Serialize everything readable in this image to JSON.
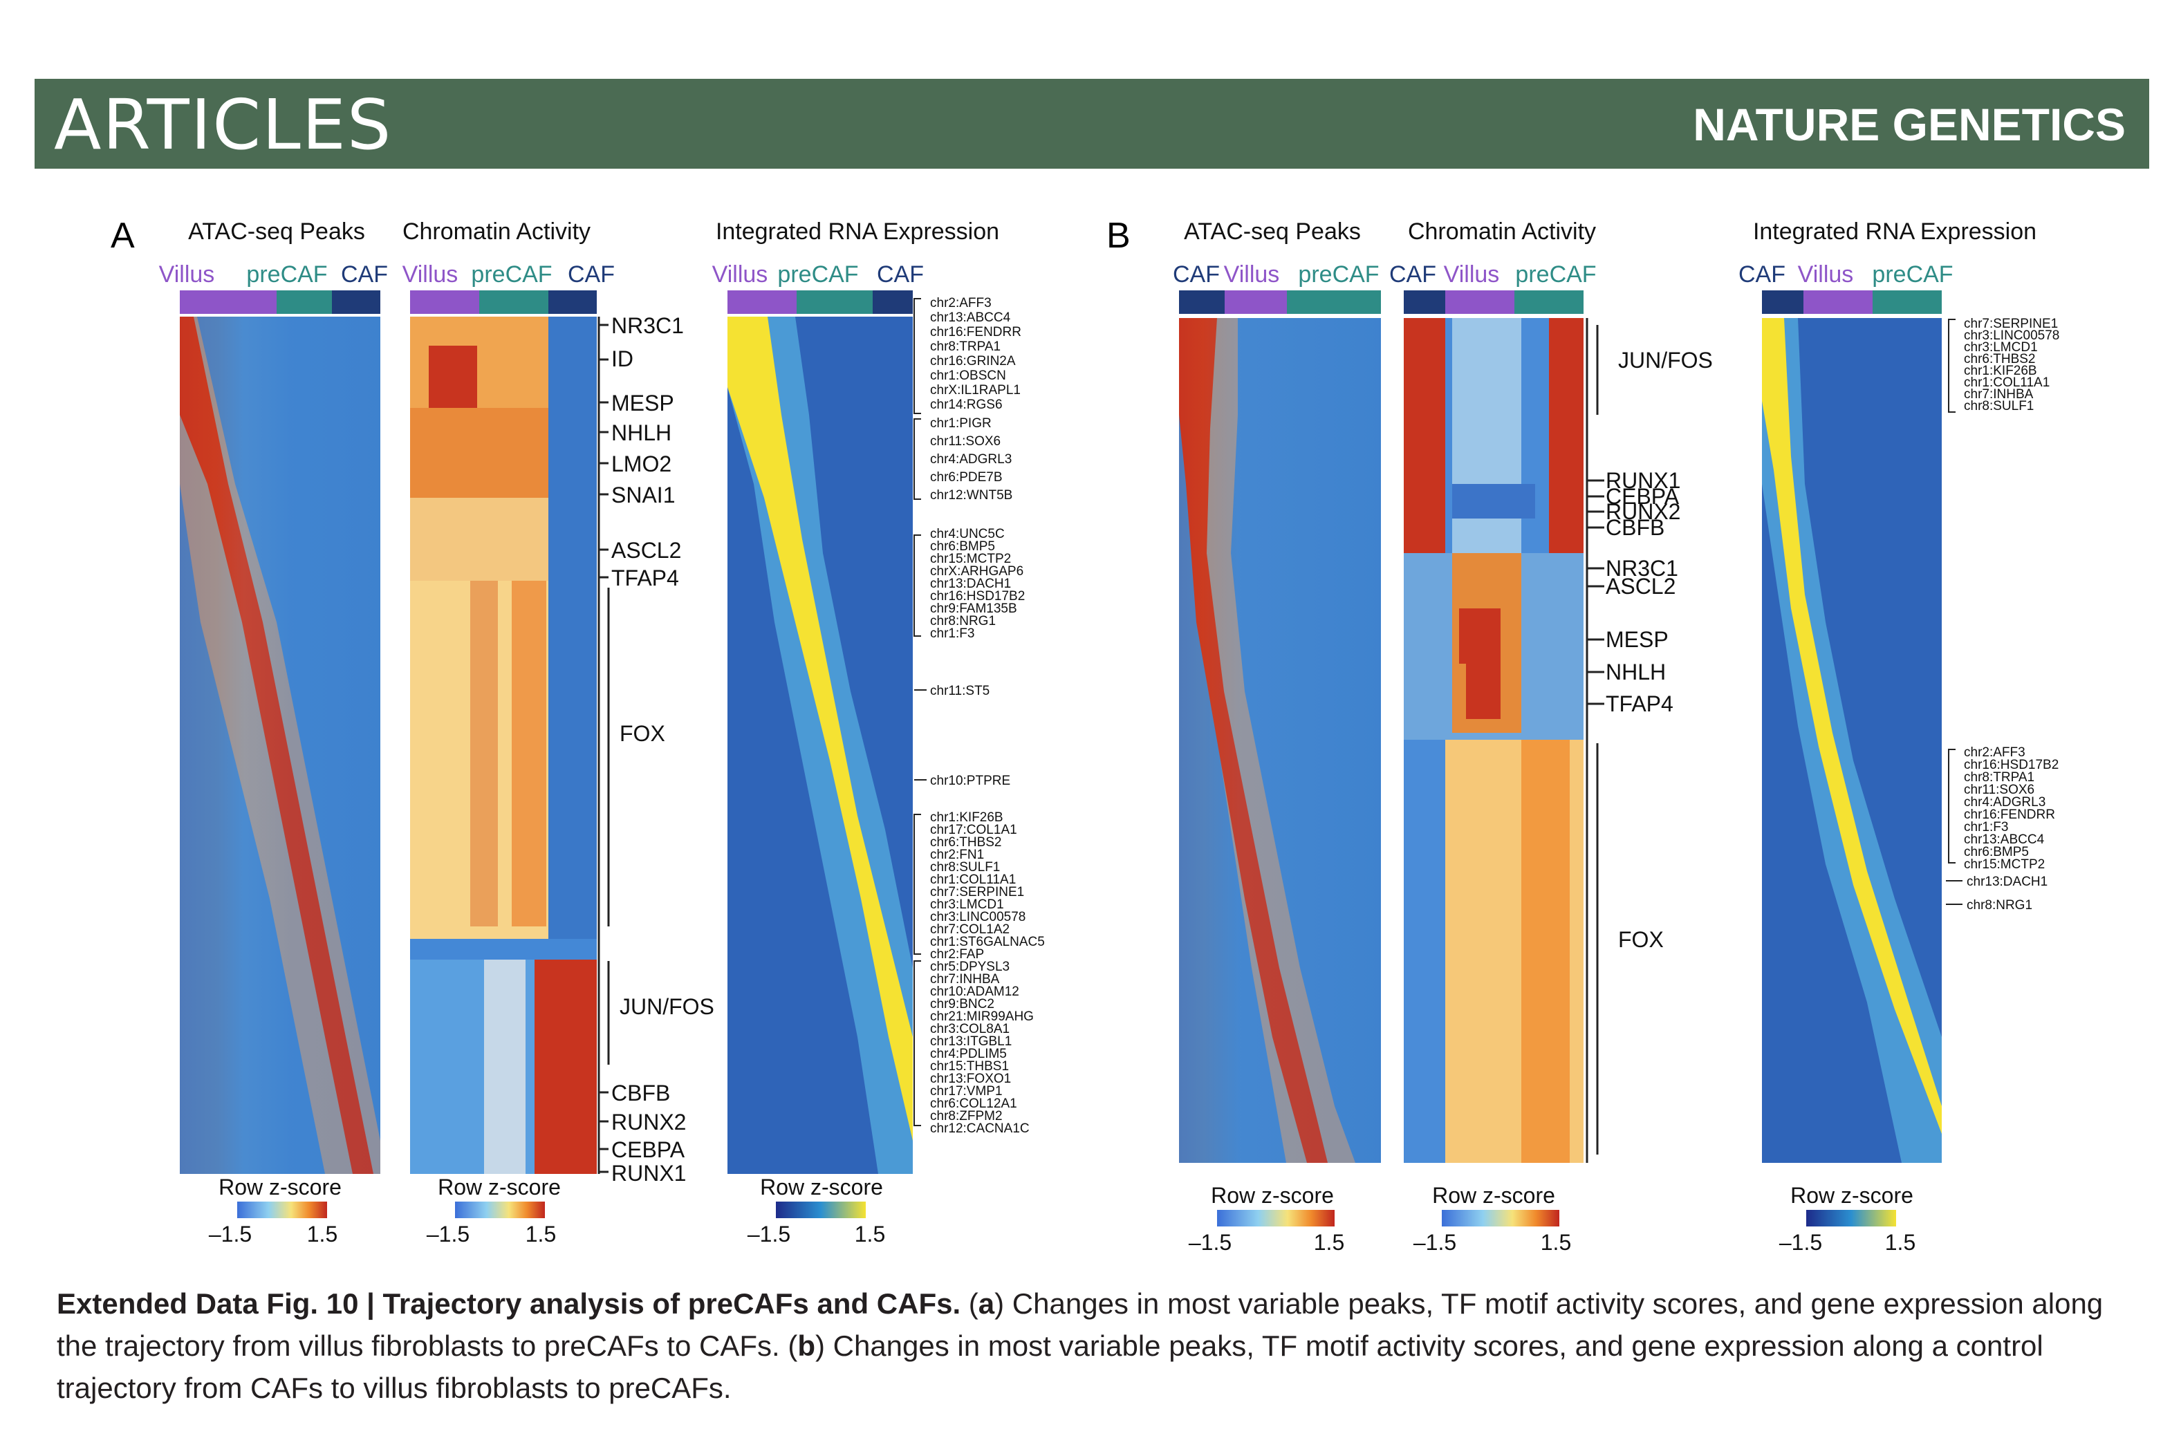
{
  "header": {
    "section": "ARTICLES",
    "journal": "NATURE GENETICS"
  },
  "panels": {
    "a": {
      "letter": "A",
      "titles": [
        "ATAC-seq Peaks",
        "Chromatin Activity",
        "Integrated RNA Expression"
      ],
      "group_labels": {
        "atac": [
          "Villus",
          "preCAF",
          "CAF"
        ],
        "chrom": [
          "Villus",
          "preCAF",
          "CAF"
        ],
        "rna": [
          "Villus",
          "preCAF",
          "CAF"
        ]
      },
      "tf_labels": [
        "NR3C1",
        "ID",
        "MESP",
        "NHLH",
        "LMO2",
        "SNAI1",
        "ASCL2",
        "TFAP4",
        "FOX",
        "JUN/FOS",
        "CBFB",
        "RUNX2",
        "CEBPA",
        "RUNX1"
      ],
      "gene_group1": [
        "chr2:AFF3",
        "chr13:ABCC4",
        "chr16:FENDRR",
        "chr8:TRPA1",
        "chr16:GRIN2A",
        "chr1:OBSCN",
        "chrX:IL1RAPL1",
        "chr14:RGS6"
      ],
      "gene_group2": [
        "chr1:PIGR",
        "chr11:SOX6",
        "chr4:ADGRL3",
        "chr6:PDE7B",
        "chr12:WNT5B"
      ],
      "gene_group3": [
        "chr4:UNC5C",
        "chr6:BMP5",
        "chr15:MCTP2",
        "chrX:ARHGAP6",
        "chr13:DACH1",
        "chr16:HSD17B2",
        "chr9:FAM135B",
        "chr8:NRG1",
        "chr1:F3"
      ],
      "gene_single1": "chr11:ST5",
      "gene_single2": "chr10:PTPRE",
      "gene_group4": [
        "chr1:KIF26B",
        "chr17:COL1A1",
        "chr6:THBS2",
        "chr2:FN1",
        "chr8:SULF1",
        "chr1:COL11A1",
        "chr7:SERPINE1",
        "chr3:LMCD1",
        "chr3:LINC00578",
        "chr7:COL1A2",
        "chr1:ST6GALNAC5",
        "chr2:FAP"
      ],
      "gene_group5": [
        "chr5:DPYSL3",
        "chr7:INHBA",
        "chr10:ADAM12",
        "chr9:BNC2",
        "chr21:MIR99AHG",
        "chr3:COL8A1",
        "chr13:ITGBL1",
        "chr4:PDLIM5",
        "chr15:THBS1",
        "chr13:FOXO1",
        "chr17:VMP1",
        "chr6:COL12A1",
        "chr8:ZFPM2",
        "chr12:CACNA1C"
      ],
      "legend_title": "Row z-score",
      "legend_min": "–1.5",
      "legend_max": "1.5"
    },
    "b": {
      "letter": "B",
      "titles": [
        "ATAC-seq Peaks",
        "Chromatin Activity",
        "Integrated RNA Expression"
      ],
      "group_labels": {
        "atac": [
          "CAF",
          "Villus",
          "preCAF"
        ],
        "chrom": [
          "CAF",
          "Villus",
          "preCAF"
        ],
        "rna": [
          "CAF",
          "Villus",
          "preCAF"
        ]
      },
      "tf_labels": [
        "JUN/FOS",
        "RUNX1",
        "CEBPA",
        "RUNX2",
        "CBFB",
        "NR3C1",
        "ASCL2",
        "MESP",
        "NHLH",
        "TFAP4",
        "FOX"
      ],
      "gene_group1": [
        "chr7:SERPINE1",
        "chr3:LINC00578",
        "chr3:LMCD1",
        "chr6:THBS2",
        "chr1:KIF26B",
        "chr1:COL11A1",
        "chr7:INHBA",
        "chr8:SULF1"
      ],
      "gene_group2": [
        "chr2:AFF3",
        "chr16:HSD17B2",
        "chr8:TRPA1",
        "chr11:SOX6",
        "chr4:ADGRL3",
        "chr16:FENDRR",
        "chr1:F3",
        "chr13:ABCC4",
        "chr6:BMP5",
        "chr15:MCTP2"
      ],
      "gene_single1": "chr13:DACH1",
      "gene_single2": "chr8:NRG1",
      "legend_title": "Row z-score",
      "legend_min": "–1.5",
      "legend_max": "1.5"
    }
  },
  "colors": {
    "banner": "#4b6b53",
    "villus": "#8e55c8",
    "precaf": "#2e8c86",
    "caf": "#1f3b78"
  },
  "caption": {
    "bold": "Extended Data Fig. 10 | Trajectory analysis of preCAFs and CAFs.",
    "p1": " (",
    "a_bold": "a",
    "p2": ") Changes in most variable peaks, TF motif activity scores, and gene expression along the trajectory from villus fibroblasts to preCAFs to CAFs. (",
    "b_bold": "b",
    "p3": ") Changes in most variable peaks, TF motif activity scores, and gene expression along a control trajectory from CAFs to villus fibroblasts to preCAFs."
  }
}
